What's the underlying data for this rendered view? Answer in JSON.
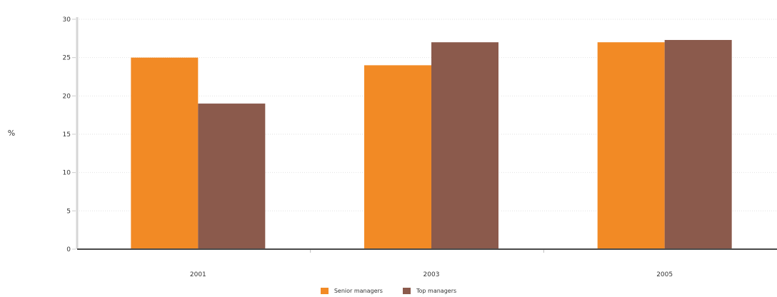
{
  "chart_data": {
    "type": "bar",
    "title": "",
    "xlabel": "",
    "ylabel": "%",
    "ylim": [
      0,
      30
    ],
    "yticks": [
      0,
      5,
      10,
      15,
      20,
      25,
      30
    ],
    "grid": true,
    "legend_position": "bottom-center",
    "categories": [
      "2001",
      "2003",
      "2005"
    ],
    "series": [
      {
        "name": "Senior managers",
        "color": "#f28a25",
        "values": [
          25,
          24,
          27
        ]
      },
      {
        "name": "Top managers",
        "color": "#8b5a4c",
        "values": [
          19,
          27,
          27.3
        ]
      }
    ]
  }
}
